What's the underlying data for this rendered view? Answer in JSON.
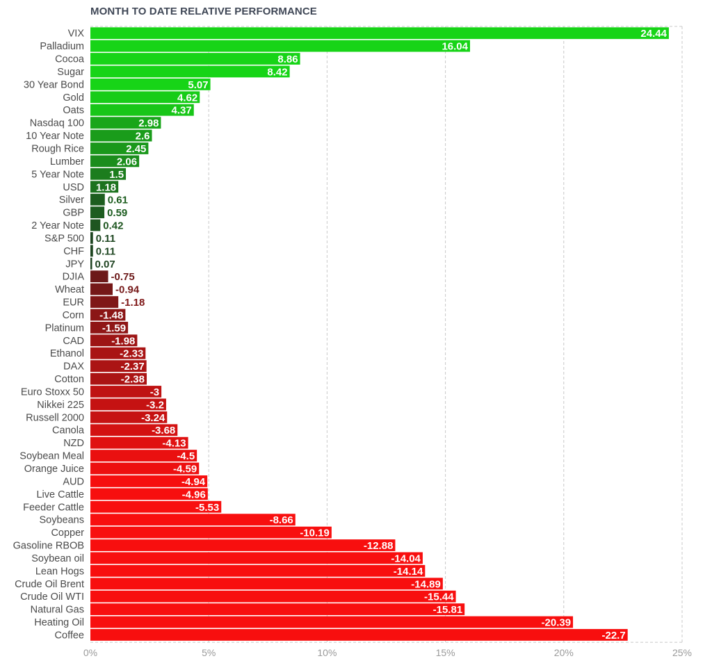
{
  "chart_data": {
    "type": "bar",
    "orientation": "horizontal",
    "title": "MONTH TO DATE RELATIVE PERFORMANCE",
    "xlabel": "",
    "ylabel": "",
    "xlim": [
      0,
      25
    ],
    "ticks": [
      0,
      5,
      10,
      15,
      20,
      25
    ],
    "tick_labels": [
      "0%",
      "5%",
      "10%",
      "15%",
      "20%",
      "25%"
    ],
    "grid": "vertical dashed",
    "legend": "none",
    "bar_length": "absolute value",
    "categories": [
      "VIX",
      "Palladium",
      "Cocoa",
      "Sugar",
      "30 Year Bond",
      "Gold",
      "Oats",
      "Nasdaq 100",
      "10 Year Note",
      "Rough Rice",
      "Lumber",
      "5 Year Note",
      "USD",
      "Silver",
      "GBP",
      "2 Year Note",
      "S&P 500",
      "CHF",
      "JPY",
      "DJIA",
      "Wheat",
      "EUR",
      "Corn",
      "Platinum",
      "CAD",
      "Ethanol",
      "DAX",
      "Cotton",
      "Euro Stoxx 50",
      "Nikkei 225",
      "Russell 2000",
      "Canola",
      "NZD",
      "Soybean Meal",
      "Orange Juice",
      "AUD",
      "Live Cattle",
      "Feeder Cattle",
      "Soybeans",
      "Copper",
      "Gasoline RBOB",
      "Soybean oil",
      "Lean Hogs",
      "Crude Oil Brent",
      "Crude Oil WTI",
      "Natural Gas",
      "Heating Oil",
      "Coffee"
    ],
    "values": [
      24.44,
      16.04,
      8.86,
      8.42,
      5.07,
      4.62,
      4.37,
      2.98,
      2.6,
      2.45,
      2.06,
      1.5,
      1.18,
      0.61,
      0.59,
      0.42,
      0.11,
      0.11,
      0.07,
      -0.75,
      -0.94,
      -1.18,
      -1.48,
      -1.59,
      -1.98,
      -2.33,
      -2.37,
      -2.38,
      -3,
      -3.2,
      -3.24,
      -3.68,
      -4.13,
      -4.5,
      -4.59,
      -4.94,
      -4.96,
      -5.53,
      -8.66,
      -10.19,
      -12.88,
      -14.04,
      -14.14,
      -14.89,
      -15.44,
      -15.81,
      -20.39,
      -22.7
    ],
    "value_labels": [
      "24.44",
      "16.04",
      "8.86",
      "8.42",
      "5.07",
      "4.62",
      "4.37",
      "2.98",
      "2.6",
      "2.45",
      "2.06",
      "1.5",
      "1.18",
      "0.61",
      "0.59",
      "0.42",
      "0.11",
      "0.11",
      "0.07",
      "-0.75",
      "-0.94",
      "-1.18",
      "-1.48",
      "-1.59",
      "-1.98",
      "-2.33",
      "-2.37",
      "-2.38",
      "-3",
      "-3.2",
      "-3.24",
      "-3.68",
      "-4.13",
      "-4.5",
      "-4.59",
      "-4.94",
      "-4.96",
      "-5.53",
      "-8.66",
      "-10.19",
      "-12.88",
      "-14.04",
      "-14.14",
      "-14.89",
      "-15.44",
      "-15.81",
      "-20.39",
      "-22.7"
    ],
    "colors": {
      "positive_strong": "#17d417",
      "positive_dark": "#1f3b22",
      "negative_dark": "#3a1c1c",
      "negative_strong": "#f80f0f",
      "grid": "#c8c8c8"
    }
  }
}
